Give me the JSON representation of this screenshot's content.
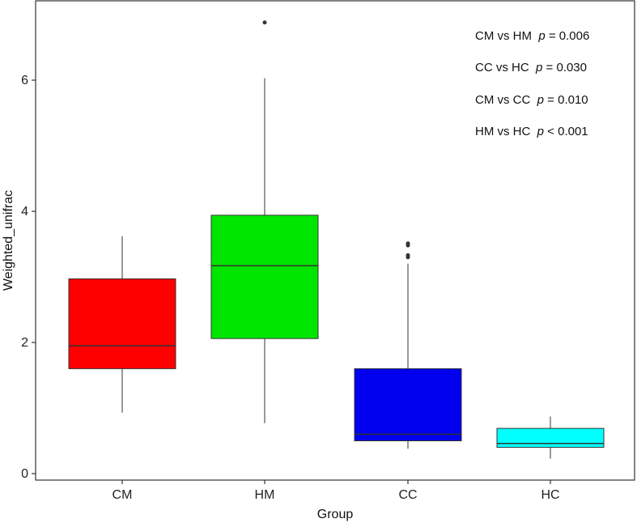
{
  "chart_data": {
    "type": "box",
    "xlabel": "Group",
    "ylabel": "Weighted_unifrac",
    "categories": [
      "CM",
      "HM",
      "CC",
      "HC"
    ],
    "ylim": [
      -0.1,
      7.2
    ],
    "yticks": [
      0,
      2,
      4,
      6
    ],
    "grid": false,
    "boxes": [
      {
        "group": "CM",
        "color": "#ff0000",
        "whisker_low": 0.93,
        "q1": 1.6,
        "median": 1.95,
        "q3": 2.97,
        "whisker_high": 3.62,
        "outliers": []
      },
      {
        "group": "HM",
        "color": "#00e600",
        "whisker_low": 0.77,
        "q1": 2.06,
        "median": 3.17,
        "q3": 3.94,
        "whisker_high": 6.03,
        "outliers": [
          6.88
        ]
      },
      {
        "group": "CC",
        "color": "#0000ee",
        "whisker_low": 0.38,
        "q1": 0.5,
        "median": 0.6,
        "q3": 1.6,
        "whisker_high": 3.2,
        "outliers": [
          3.3,
          3.33,
          3.48,
          3.51
        ]
      },
      {
        "group": "HC",
        "color": "#00ffff",
        "whisker_low": 0.23,
        "q1": 0.4,
        "median": 0.46,
        "q3": 0.69,
        "whisker_high": 0.87,
        "outliers": []
      }
    ],
    "annotations": [
      {
        "comparison": "CM vs HM",
        "p_symbol": "p",
        "p_value": "= 0.006"
      },
      {
        "comparison": "CC vs HC",
        "p_symbol": "p",
        "p_value": "= 0.030"
      },
      {
        "comparison": "CM vs CC",
        "p_symbol": "p",
        "p_value": "= 0.010"
      },
      {
        "comparison": "HM vs HC",
        "p_symbol": "p",
        "p_value": "< 0.001"
      }
    ]
  }
}
